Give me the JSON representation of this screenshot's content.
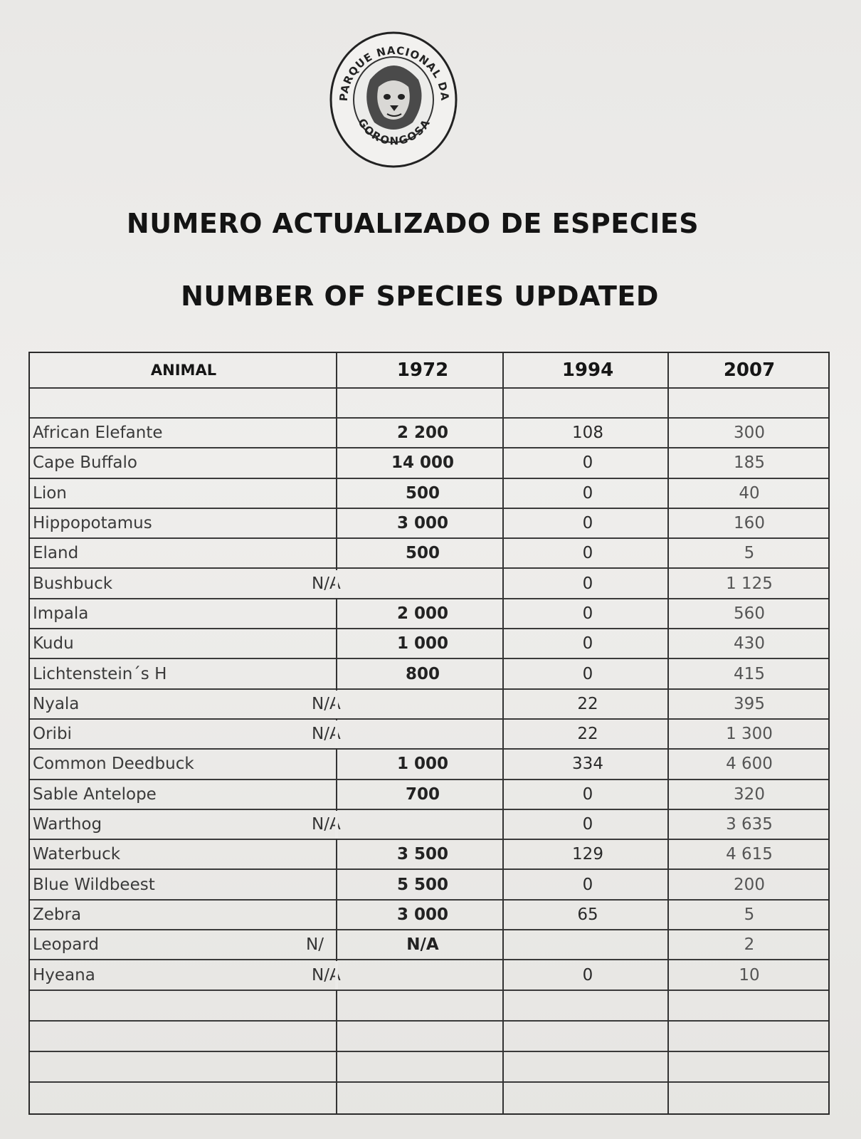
{
  "seal": {
    "text_top": "PARQUE NACIONAL DA",
    "text_bottom": "GORONGOSA"
  },
  "titles": {
    "portuguese": "NUMERO ACTUALIZADO DE ESPECIES",
    "english": "NUMBER OF SPECIES UPDATED"
  },
  "table": {
    "headers": [
      "ANIMAL",
      "1972",
      "1994",
      "2007"
    ],
    "rows": [
      {
        "animal": "African Elefante",
        "y1972": "2 200",
        "y1994": "108",
        "y2007": "300"
      },
      {
        "animal": "Cape Buffalo",
        "y1972": "14 000",
        "y1994": "0",
        "y2007": "185"
      },
      {
        "animal": "Lion",
        "y1972": "500",
        "y1994": "0",
        "y2007": "40"
      },
      {
        "animal": "Hippopotamus",
        "y1972": "3 000",
        "y1994": "0",
        "y2007": "160"
      },
      {
        "animal": "Eland",
        "y1972": "500",
        "y1994": "0",
        "y2007": "5"
      },
      {
        "animal": "Bushbuck",
        "y1972": "N/A",
        "y1994": "0",
        "y2007": "1 125",
        "merged": true
      },
      {
        "animal": "Impala",
        "y1972": "2 000",
        "y1994": "0",
        "y2007": "560"
      },
      {
        "animal": "Kudu",
        "y1972": "1 000",
        "y1994": "0",
        "y2007": "430"
      },
      {
        "animal": "Lichtenstein´s H",
        "y1972": "800",
        "y1994": "0",
        "y2007": "415"
      },
      {
        "animal": "Nyala",
        "y1972": "N/A",
        "y1994": "22",
        "y2007": "395",
        "merged": true
      },
      {
        "animal": "Oribi",
        "y1972": "N/A",
        "y1994": "22",
        "y2007": "1 300",
        "merged": true
      },
      {
        "animal": "Common Deedbuck",
        "y1972": "1 000",
        "y1994": "334",
        "y2007": "4 600"
      },
      {
        "animal": "Sable Antelope",
        "y1972": "700",
        "y1994": "0",
        "y2007": "320"
      },
      {
        "animal": "Warthog",
        "y1972": "N/A",
        "y1994": "0",
        "y2007": "3 635",
        "merged": true
      },
      {
        "animal": "Waterbuck",
        "y1972": "3 500",
        "y1994": "129",
        "y2007": "4 615"
      },
      {
        "animal": "Blue Wildbeest",
        "y1972": "5 500",
        "y1994": "0",
        "y2007": "200"
      },
      {
        "animal": "Zebra",
        "y1972": "3 000",
        "y1994": "65",
        "y2007": "5"
      },
      {
        "animal": "Leopard",
        "extra": "N/",
        "y1972": "N/A",
        "y1994": "",
        "y2007": "2"
      },
      {
        "animal": "Hyeana",
        "y1972": "N/A",
        "y1994": "0",
        "y2007": "10",
        "merged": true
      }
    ],
    "empty_rows_after": 4
  }
}
